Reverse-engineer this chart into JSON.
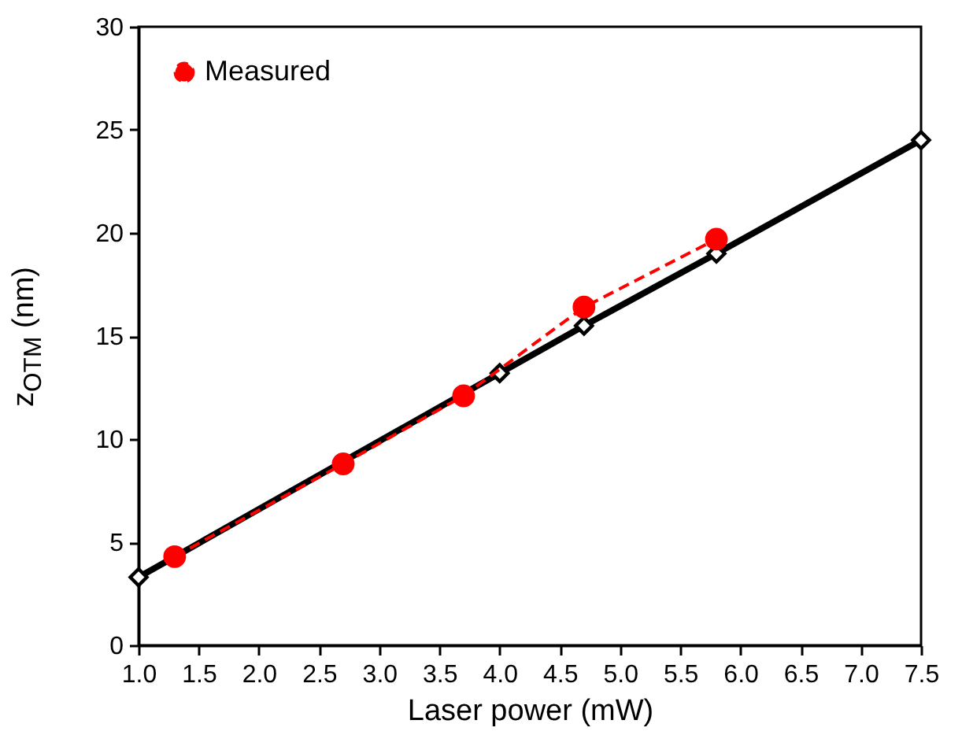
{
  "chart_data": {
    "type": "line",
    "xlabel": "Laser power (mW)",
    "ylabel": "z$_{OTM}$ (nm)",
    "xlim": [
      1.0,
      7.5
    ],
    "ylim": [
      0,
      30
    ],
    "xticks": [
      {
        "value": 1,
        "label": "1.0"
      },
      {
        "value": 1.5,
        "label": "1.5"
      },
      {
        "value": 2,
        "label": "2.0"
      },
      {
        "value": 2.5,
        "label": "2.5"
      },
      {
        "value": 3,
        "label": "3.0"
      },
      {
        "value": 3.5,
        "label": "3.5"
      },
      {
        "value": 4,
        "label": "4.0"
      },
      {
        "value": 4.5,
        "label": "4.5"
      },
      {
        "value": 5,
        "label": "5.0"
      },
      {
        "value": 5.5,
        "label": "5.5"
      },
      {
        "value": 6,
        "label": "6.0"
      },
      {
        "value": 6.5,
        "label": "6.5"
      },
      {
        "value": 7,
        "label": "7.0"
      },
      {
        "value": 7.5,
        "label": "7.5"
      }
    ],
    "yticks": [
      0,
      5,
      10,
      15,
      20,
      25,
      30
    ],
    "grid": false,
    "legend": "top left",
    "series": [
      {
        "color": "#000000",
        "x": [
          1.0,
          4.0,
          4.7,
          5.8,
          7.5
        ],
        "values": [
          3.3,
          13.2,
          15.5,
          19.0,
          24.5
        ],
        "marker": "diamond",
        "line_style": "solid"
      },
      {
        "name": "Measured",
        "color": "#ff0000",
        "x": [
          1.3,
          2.7,
          3.7,
          4.7,
          5.8
        ],
        "values": [
          4.3,
          8.8,
          12.1,
          16.4,
          19.7
        ],
        "marker": "circle",
        "line_style": "dashed"
      }
    ]
  }
}
